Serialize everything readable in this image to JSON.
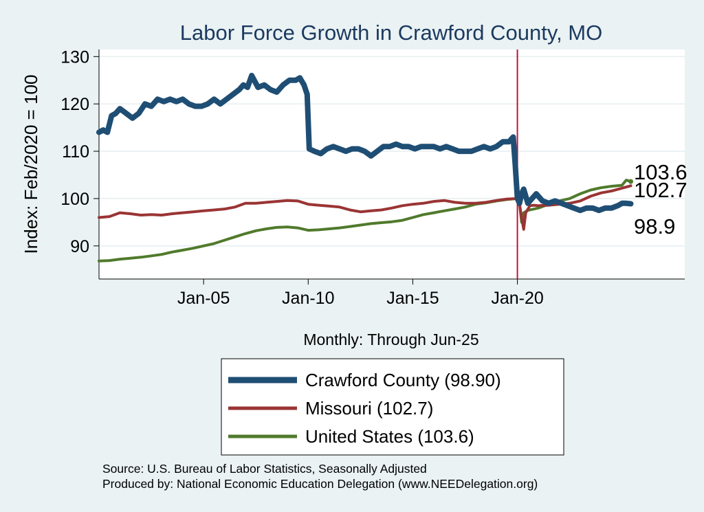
{
  "chart_data": {
    "type": "line",
    "title": "Labor Force Growth in Crawford  County, MO",
    "ylabel": "Index: Feb/2020 = 100",
    "xlabel": "Monthly: Through Jun-25",
    "ylim": [
      83,
      131.5
    ],
    "xlim": [
      2000.0,
      2028.0
    ],
    "yticks": [
      90,
      100,
      110,
      120,
      130
    ],
    "xticks": [
      {
        "label": "Jan-05",
        "value": 2005.0
      },
      {
        "label": "Jan-10",
        "value": 2010.0
      },
      {
        "label": "Jan-15",
        "value": 2015.0
      },
      {
        "label": "Jan-20",
        "value": 2020.0
      }
    ],
    "reference_line": {
      "x": 2020.0,
      "color": "#c0103a"
    },
    "series": [
      {
        "name": "Crawford  County",
        "legend": "Crawford  County (98.90)",
        "color": "#1f4e74",
        "end_label": "98.9",
        "x": [
          2000.0,
          2000.2,
          2000.4,
          2000.6,
          2000.8,
          2001.0,
          2001.3,
          2001.6,
          2001.9,
          2002.2,
          2002.5,
          2002.8,
          2003.1,
          2003.4,
          2003.7,
          2004.0,
          2004.3,
          2004.6,
          2004.9,
          2005.2,
          2005.5,
          2005.8,
          2006.1,
          2006.4,
          2006.7,
          2006.9,
          2007.1,
          2007.3,
          2007.6,
          2007.9,
          2008.2,
          2008.5,
          2008.8,
          2009.1,
          2009.4,
          2009.6,
          2009.8,
          2009.95,
          2010.05,
          2010.3,
          2010.6,
          2010.9,
          2011.2,
          2011.5,
          2011.8,
          2012.1,
          2012.4,
          2012.7,
          2013.0,
          2013.3,
          2013.6,
          2013.9,
          2014.2,
          2014.5,
          2014.8,
          2015.1,
          2015.4,
          2015.7,
          2016.0,
          2016.3,
          2016.6,
          2016.9,
          2017.2,
          2017.5,
          2017.8,
          2018.1,
          2018.4,
          2018.7,
          2019.0,
          2019.3,
          2019.6,
          2019.8,
          2019.9,
          2020.0,
          2020.1,
          2020.2,
          2020.3,
          2020.5,
          2020.7,
          2020.9,
          2021.2,
          2021.5,
          2021.8,
          2022.1,
          2022.4,
          2022.7,
          2023.0,
          2023.3,
          2023.6,
          2023.9,
          2024.2,
          2024.5,
          2024.8,
          2025.0,
          2025.2,
          2025.42
        ],
        "values": [
          114,
          114.5,
          114,
          117.5,
          118,
          119,
          118,
          117,
          118,
          120,
          119.5,
          121,
          120.5,
          121,
          120.5,
          121,
          120,
          119.5,
          119.5,
          120,
          121,
          120,
          121,
          122,
          123,
          124,
          123.5,
          126,
          123.5,
          124,
          123,
          122.5,
          124,
          125,
          125,
          125.5,
          124,
          122,
          110.5,
          110,
          109.5,
          110.5,
          111,
          110.5,
          110,
          110.5,
          110.5,
          110,
          109,
          110,
          111,
          111,
          111.5,
          111,
          111,
          110.5,
          111,
          111,
          111,
          110.5,
          111,
          110.5,
          110,
          110,
          110,
          110.5,
          111,
          110.5,
          111,
          112,
          112,
          113,
          107,
          100,
          99,
          101,
          102,
          99,
          100,
          101,
          99.5,
          99,
          99.5,
          99,
          98.5,
          98,
          97.5,
          98,
          98,
          97.5,
          98,
          98,
          98.5,
          99,
          99,
          98.9
        ]
      },
      {
        "name": "Missouri",
        "legend": "Missouri (102.7)",
        "color": "#9a3434",
        "end_label": "102.7",
        "x": [
          2000.0,
          2000.5,
          2001.0,
          2001.5,
          2002.0,
          2002.5,
          2003.0,
          2003.5,
          2004.0,
          2004.5,
          2005.0,
          2005.5,
          2006.0,
          2006.5,
          2007.0,
          2007.5,
          2008.0,
          2008.5,
          2009.0,
          2009.5,
          2010.0,
          2010.5,
          2011.0,
          2011.5,
          2012.0,
          2012.5,
          2013.0,
          2013.5,
          2014.0,
          2014.5,
          2015.0,
          2015.5,
          2016.0,
          2016.5,
          2017.0,
          2017.5,
          2018.0,
          2018.5,
          2019.0,
          2019.5,
          2020.0,
          2020.1,
          2020.2,
          2020.3,
          2020.4,
          2020.6,
          2020.8,
          2021.0,
          2021.5,
          2022.0,
          2022.5,
          2023.0,
          2023.5,
          2024.0,
          2024.5,
          2025.0,
          2025.42
        ],
        "values": [
          96,
          96.2,
          97,
          96.8,
          96.5,
          96.6,
          96.5,
          96.8,
          97,
          97.2,
          97.4,
          97.6,
          97.8,
          98.2,
          99,
          99,
          99.2,
          99.4,
          99.6,
          99.5,
          98.8,
          98.6,
          98.4,
          98.2,
          97.6,
          97.2,
          97.4,
          97.6,
          98,
          98.5,
          98.8,
          99,
          99.4,
          99.6,
          99.2,
          99,
          99,
          99.2,
          99.6,
          99.9,
          100,
          99,
          96,
          93.5,
          97,
          98.5,
          98.6,
          98.5,
          98.6,
          98.8,
          99,
          99.5,
          100.5,
          101.2,
          101.6,
          102.2,
          102.7
        ]
      },
      {
        "name": "United States",
        "legend": "United States (103.6)",
        "color": "#507a2c",
        "end_label": "103.6",
        "x": [
          2000.0,
          2000.5,
          2001.0,
          2001.5,
          2002.0,
          2002.5,
          2003.0,
          2003.5,
          2004.0,
          2004.5,
          2005.0,
          2005.5,
          2006.0,
          2006.5,
          2007.0,
          2007.5,
          2008.0,
          2008.5,
          2009.0,
          2009.5,
          2010.0,
          2010.5,
          2011.0,
          2011.5,
          2012.0,
          2012.5,
          2013.0,
          2013.5,
          2014.0,
          2014.5,
          2015.0,
          2015.5,
          2016.0,
          2016.5,
          2017.0,
          2017.5,
          2018.0,
          2018.5,
          2019.0,
          2019.5,
          2020.0,
          2020.1,
          2020.2,
          2020.3,
          2020.5,
          2020.8,
          2021.0,
          2021.5,
          2022.0,
          2022.5,
          2023.0,
          2023.5,
          2024.0,
          2024.5,
          2025.0,
          2025.2,
          2025.42
        ],
        "values": [
          86.8,
          86.9,
          87.2,
          87.4,
          87.6,
          87.9,
          88.2,
          88.7,
          89.1,
          89.5,
          90,
          90.5,
          91.2,
          91.9,
          92.6,
          93.2,
          93.6,
          93.9,
          94,
          93.8,
          93.3,
          93.4,
          93.6,
          93.8,
          94.1,
          94.4,
          94.7,
          94.9,
          95.1,
          95.4,
          96,
          96.6,
          97,
          97.4,
          97.8,
          98.2,
          98.8,
          99.1,
          99.5,
          99.8,
          100,
          99,
          95,
          97,
          97.5,
          97.8,
          98,
          98.8,
          99.5,
          100,
          101,
          101.8,
          102.3,
          102.6,
          102.8,
          103.9,
          103.6
        ]
      }
    ]
  },
  "source_line1": "Source: U.S. Bureau of Labor Statistics, Seasonally Adjusted",
  "source_line2": "Produced by: National Economic Education Delegation (www.NEEDelegation.org)"
}
